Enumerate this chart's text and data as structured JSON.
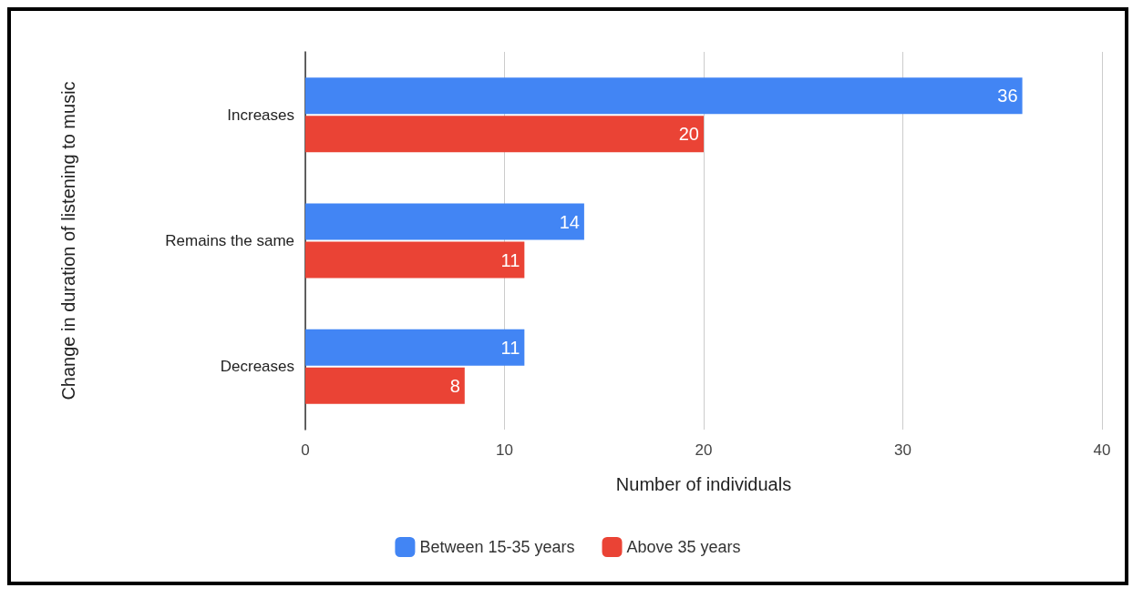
{
  "chart_data": {
    "type": "bar",
    "orientation": "horizontal",
    "xlabel": "Number of individuals",
    "ylabel": "Change in duration of listening to music",
    "categories": [
      "Increases",
      "Remains the same",
      "Decreases"
    ],
    "series": [
      {
        "name": "Between 15-35 years",
        "color": "#4285f4",
        "values": [
          36,
          14,
          11
        ]
      },
      {
        "name": "Above 35 years",
        "color": "#ea4335",
        "values": [
          20,
          11,
          8
        ]
      }
    ],
    "xlim": [
      0,
      40
    ],
    "xticks": [
      0,
      10,
      20,
      30,
      40
    ],
    "grid": "x",
    "legend": "bottom",
    "data_labels": true
  }
}
